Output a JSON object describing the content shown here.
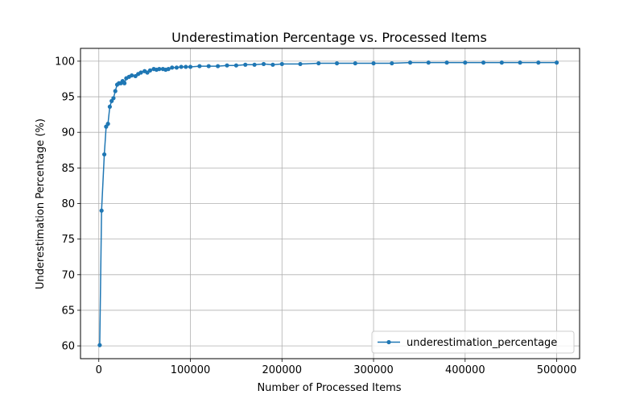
{
  "chart_data": {
    "type": "line",
    "title": "Underestimation Percentage vs. Processed Items",
    "xlabel": "Number of Processed Items",
    "ylabel": "Underestimation Percentage (%)",
    "xlim": [
      -20000,
      525000
    ],
    "ylim": [
      58.2,
      101.8
    ],
    "xticks": [
      0,
      100000,
      200000,
      300000,
      400000,
      500000
    ],
    "xtick_labels": [
      "0",
      "100000",
      "200000",
      "300000",
      "400000",
      "500000"
    ],
    "yticks": [
      60,
      65,
      70,
      75,
      80,
      85,
      90,
      95,
      100
    ],
    "ytick_labels": [
      "60",
      "65",
      "70",
      "75",
      "80",
      "85",
      "90",
      "95",
      "100"
    ],
    "grid": true,
    "legend_position": "lower-right",
    "series": [
      {
        "name": "underestimation_percentage",
        "color": "#1f77b4",
        "marker": "circle",
        "x": [
          1000,
          3000,
          6000,
          8000,
          10000,
          12000,
          14000,
          16000,
          18000,
          20000,
          22000,
          24000,
          26000,
          28000,
          30000,
          33000,
          36000,
          40000,
          43000,
          46000,
          50000,
          53000,
          56000,
          60000,
          63000,
          66000,
          70000,
          73000,
          76000,
          80000,
          85000,
          90000,
          95000,
          100000,
          110000,
          120000,
          130000,
          140000,
          150000,
          160000,
          170000,
          180000,
          190000,
          200000,
          220000,
          240000,
          260000,
          280000,
          300000,
          320000,
          340000,
          360000,
          380000,
          400000,
          420000,
          440000,
          460000,
          480000,
          500000
        ],
        "y": [
          60.1,
          79.0,
          86.9,
          90.8,
          91.2,
          93.6,
          94.4,
          94.8,
          95.8,
          96.7,
          96.9,
          96.9,
          97.2,
          96.9,
          97.6,
          97.8,
          98.0,
          97.9,
          98.2,
          98.4,
          98.6,
          98.4,
          98.7,
          98.9,
          98.8,
          98.9,
          98.9,
          98.8,
          98.9,
          99.1,
          99.1,
          99.2,
          99.2,
          99.2,
          99.3,
          99.3,
          99.3,
          99.4,
          99.4,
          99.5,
          99.5,
          99.6,
          99.5,
          99.6,
          99.6,
          99.7,
          99.7,
          99.7,
          99.7,
          99.7,
          99.8,
          99.8,
          99.8,
          99.8,
          99.8,
          99.8,
          99.8,
          99.8,
          99.8
        ]
      }
    ]
  }
}
